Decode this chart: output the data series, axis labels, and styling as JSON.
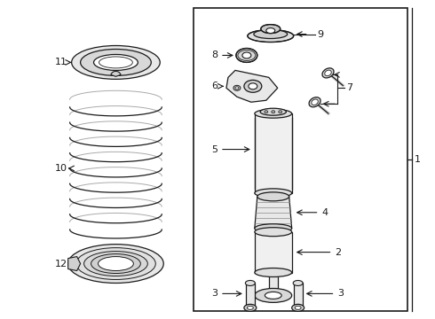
{
  "bg_color": "#ffffff",
  "line_color": "#1a1a1a",
  "gray_fill": "#e8e8e8",
  "dark_fill": "#c8c8c8",
  "fig_w": 4.9,
  "fig_h": 3.6,
  "dpi": 100
}
